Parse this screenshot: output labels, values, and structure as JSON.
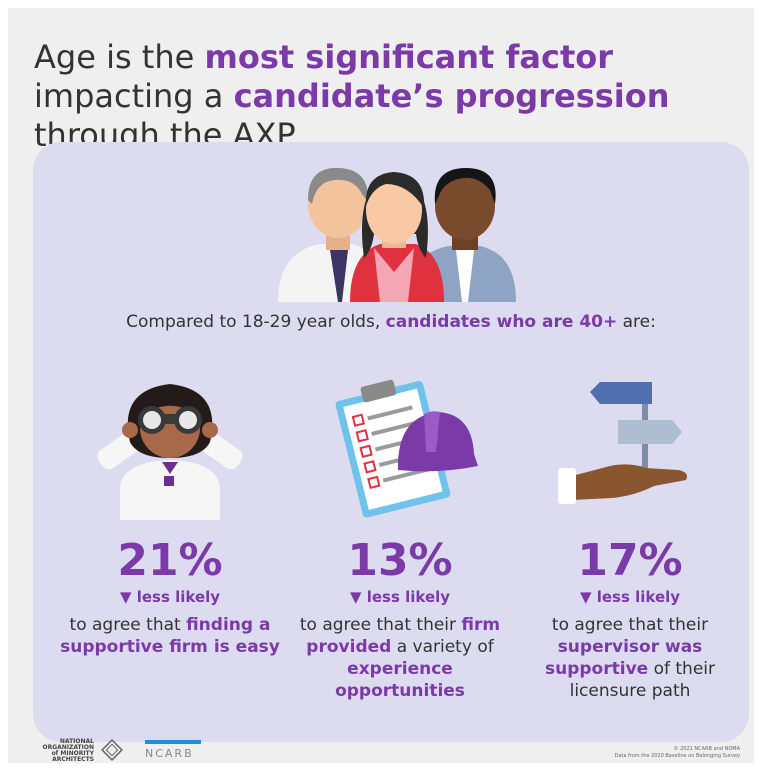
{
  "title": {
    "p1": "Age is the ",
    "h1": "most significant factor",
    "p2": " impacting a ",
    "h2": "candidate’s progression",
    "p3": " through the AXP."
  },
  "compare": {
    "p1": "Compared to 18-29 year olds, ",
    "h1": "candidates who are 40+",
    "p2": " are:"
  },
  "stats": [
    {
      "pct": "21%",
      "less": "▼ less likely",
      "d1": "to agree that ",
      "h1": "finding a supportive firm is easy",
      "d2": "",
      "h2": "",
      "d3": ""
    },
    {
      "pct": "13%",
      "less": "▼ less likely",
      "d1": "to agree that their ",
      "h1": "firm provided",
      "d2": " a variety of ",
      "h2": "experience opportunities",
      "d3": ""
    },
    {
      "pct": "17%",
      "less": "▼ less likely",
      "d1": "to agree that their ",
      "h1": "supervisor was supportive",
      "d2": " of their licensure path",
      "h2": "",
      "d3": ""
    }
  ],
  "footer": {
    "noma": "NATIONAL ORGANIZATION of MINORITY ARCHITECTS",
    "ncarb": "NCARB",
    "copyright": "© 2021 NCARB and NOMA",
    "source": "Data from the 2020 Baseline on Belonging Survey"
  },
  "colors": {
    "accent": "#7b3aa8",
    "panel": "#dcdbf0",
    "text": "#333333"
  },
  "icons": [
    "three-people-icon",
    "binoculars-person-icon",
    "clipboard-hardhat-icon",
    "hand-signpost-icon"
  ]
}
